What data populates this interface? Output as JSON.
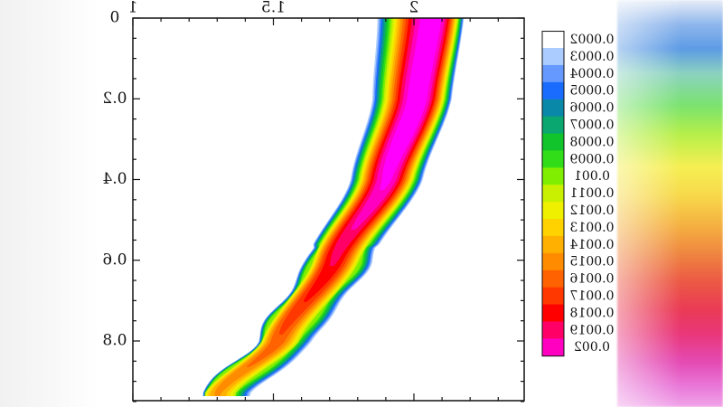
{
  "chart_data": {
    "type": "heatmap",
    "mirrored": true,
    "x_ticks": [
      "1",
      "1.5",
      "2"
    ],
    "y_ticks": [
      "0",
      "0.2",
      "0.4",
      "0.6",
      "0.8"
    ],
    "xlim": [
      1,
      2.4
    ],
    "ylim": [
      0,
      0.95
    ],
    "grid": false,
    "legend_position": "right",
    "legend": {
      "levels": [
        "0.0002",
        "0.0003",
        "0.0004",
        "0.0005",
        "0.0006",
        "0.0007",
        "0.0008",
        "0.0009",
        "0.001",
        "0.0011",
        "0.0012",
        "0.0013",
        "0.0014",
        "0.0015",
        "0.0016",
        "0.0017",
        "0.0018",
        "0.0019",
        "0.002"
      ],
      "colors": [
        "#ffffff",
        "#aaccff",
        "#6699ff",
        "#1a6cff",
        "#0a88a8",
        "#0aa870",
        "#11c42c",
        "#30dd18",
        "#80ee00",
        "#c8f000",
        "#eef000",
        "#ffd200",
        "#ffb000",
        "#ff8c00",
        "#ff6200",
        "#ff3800",
        "#ff0000",
        "#ff0066",
        "#ff00c0",
        "#ff00ff"
      ]
    },
    "band": {
      "centerline": [
        {
          "y": 0.0,
          "x": 2.03
        },
        {
          "y": 0.2,
          "x": 2.0
        },
        {
          "y": 0.4,
          "x": 1.91
        },
        {
          "y": 0.6,
          "x": 1.74
        },
        {
          "y": 0.8,
          "x": 1.55
        },
        {
          "y": 0.93,
          "x": 1.34
        }
      ]
    },
    "title": "",
    "xlabel": "",
    "ylabel": ""
  }
}
